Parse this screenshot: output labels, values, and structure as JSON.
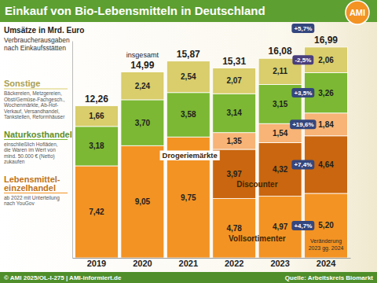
{
  "chart_data": {
    "type": "bar",
    "stacked": true,
    "data_labels": true,
    "tick_labels": "x",
    "title": "Einkauf von Bio-Lebensmitteln in Deutschland",
    "logo": "AMI",
    "subtitle": "Umsätze in Mrd. Euro",
    "description": [
      "Verbraucherausgaben",
      "nach Einkaufsstätten"
    ],
    "categories": [
      "2019",
      "2020",
      "2021",
      "2022",
      "2023",
      "2024"
    ],
    "ylim": [
      0,
      17.5
    ],
    "series": [
      {
        "name": "Lebensmittel-einzelhandel",
        "description": [
          "ab 2022 mit Unterteilung",
          "nach YouGov"
        ],
        "color": "#f39323",
        "values": [
          7.42,
          9.05,
          9.75,
          null,
          null,
          null
        ],
        "value_labels": [
          "7,42",
          "9,05",
          "9,75",
          null,
          null,
          null
        ]
      },
      {
        "name": "Vollsortimenter",
        "color": "#f39323",
        "values": [
          null,
          null,
          null,
          4.78,
          4.97,
          5.2
        ],
        "value_labels": [
          null,
          null,
          null,
          "4,78",
          "4,97",
          "5,20"
        ],
        "change": 4.7,
        "change_label": "+4,7%"
      },
      {
        "name": "Discounter",
        "color": "#c9660f",
        "values": [
          null,
          null,
          null,
          3.97,
          4.32,
          4.64
        ],
        "value_labels": [
          null,
          null,
          null,
          "3,97",
          "4,32",
          "4,64"
        ],
        "change": 7.4,
        "change_label": "+7,4%"
      },
      {
        "name": "Drogeriemärkte",
        "color": "#f7b476",
        "values": [
          null,
          null,
          null,
          1.35,
          1.54,
          1.84
        ],
        "value_labels": [
          null,
          null,
          null,
          "1,35",
          "1,54",
          "1,84"
        ],
        "change": 19.6,
        "change_label": "+19,6%"
      },
      {
        "name": "Naturkosthandel",
        "description": [
          "einschließlich Hofläden,",
          "die Waren im Wert von",
          "mind. 50.000 € (Netto)",
          "zukaufen"
        ],
        "color": "#7cb833",
        "values": [
          3.18,
          3.7,
          3.58,
          3.14,
          3.15,
          3.26
        ],
        "value_labels": [
          "3,18",
          "3,70",
          "3,58",
          "3,14",
          "3,15",
          "3,26"
        ],
        "change": 3.5,
        "change_label": "+3,5%"
      },
      {
        "name": "Sonstige",
        "description": [
          "Bäckereien, Metzgereien,",
          "Obst/Gemüse-Fachgesch.,",
          "Wochenmärkte, Ab-Hof-",
          "Verkauf, Versandhandel,",
          "Tankstellen, Reformhäuser"
        ],
        "color": "#d9cd6c",
        "values": [
          1.66,
          2.24,
          2.54,
          2.07,
          2.11,
          2.06
        ],
        "value_labels": [
          "1,66",
          "2,24",
          "2,54",
          "2,07",
          "2,11",
          "2,06"
        ],
        "change": -2.5,
        "change_label": "-2,5%"
      }
    ],
    "totals": {
      "label": "insgesamt",
      "values": [
        12.26,
        14.99,
        15.87,
        15.31,
        16.08,
        16.99
      ],
      "value_labels": [
        "12,26",
        "14,99",
        "15,87",
        "15,31",
        "16,08",
        "16,99"
      ],
      "change": 5.7,
      "change_label": "+5,7%"
    },
    "change_note": [
      "Veränderung",
      "2023 gg. 2024"
    ],
    "footer": "© AMI 2025/OL-I-275 | AMI-informiert.de",
    "source": "Quelle: Arbeitskreis Biomarkt"
  }
}
